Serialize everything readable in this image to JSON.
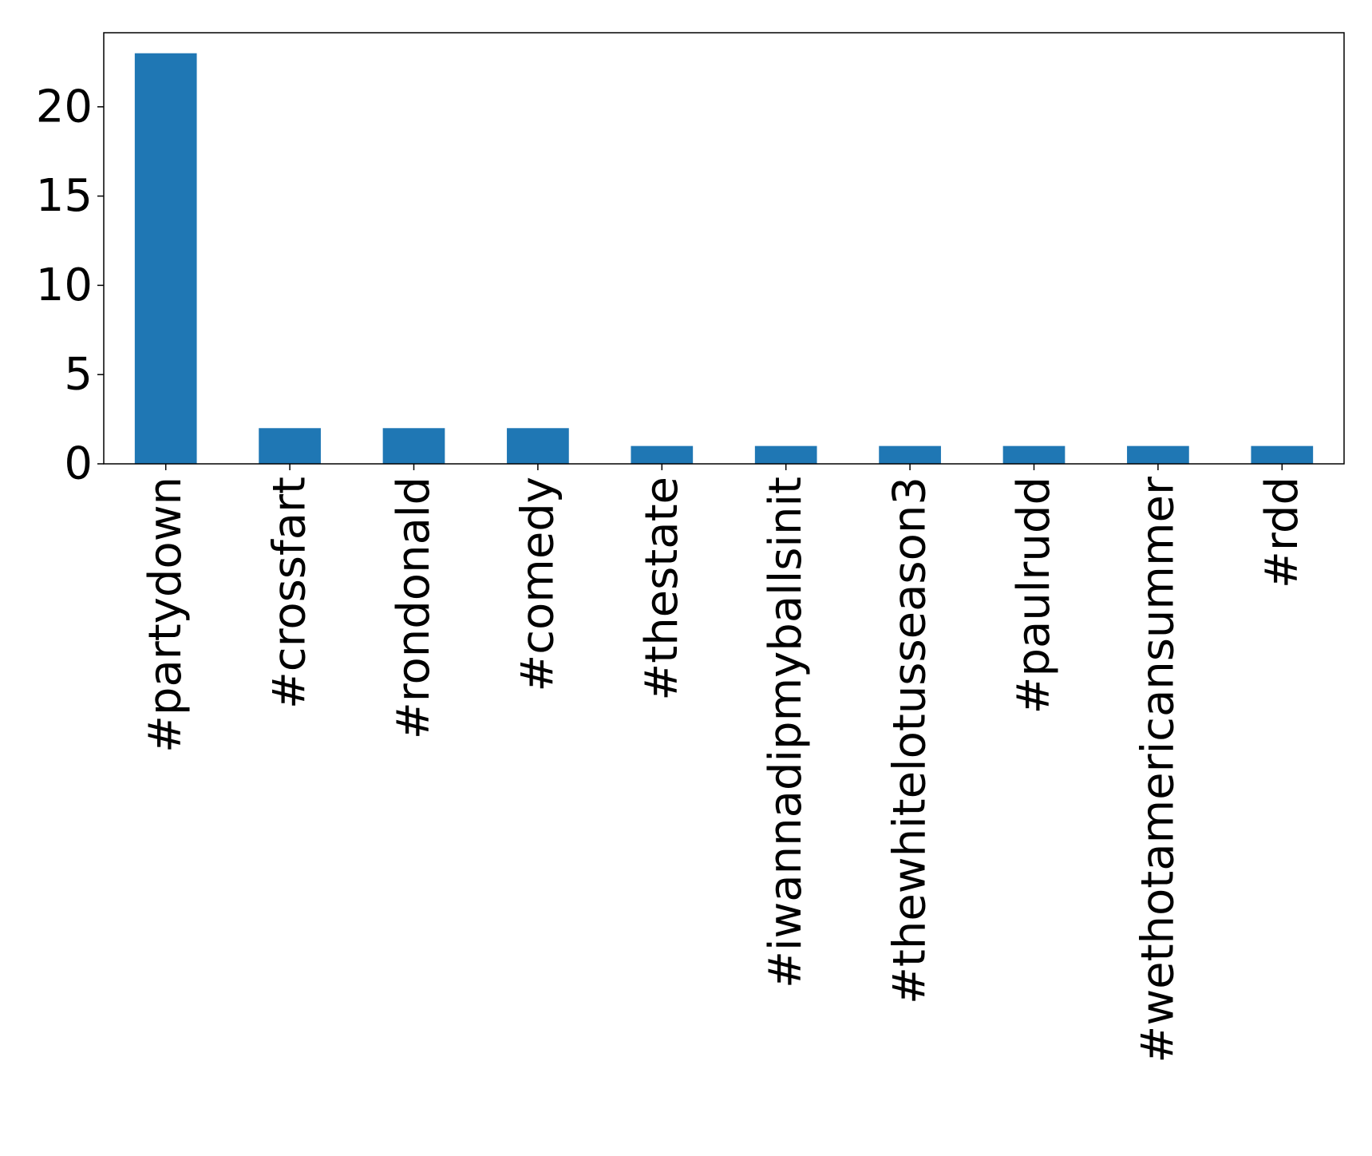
{
  "chart_data": {
    "type": "bar",
    "title": "",
    "xlabel": "",
    "ylabel": "",
    "categories": [
      "#partydown",
      "#crossfart",
      "#rondonald",
      "#comedy",
      "#thestate",
      "#iwannadipmyballsinit",
      "#thewhitelotusseason3",
      "#paulrudd",
      "#wethotamericansummer",
      "#rdd"
    ],
    "values": [
      23,
      2,
      2,
      2,
      1,
      1,
      1,
      1,
      1,
      1
    ],
    "ylim": [
      0,
      24.15
    ],
    "yticks": [
      0,
      5,
      10,
      15,
      20
    ],
    "ytick_labels": [
      "0",
      "5",
      "10",
      "15",
      "20"
    ],
    "grid": false,
    "legend": "none",
    "bar_color": "#1f77b4"
  }
}
